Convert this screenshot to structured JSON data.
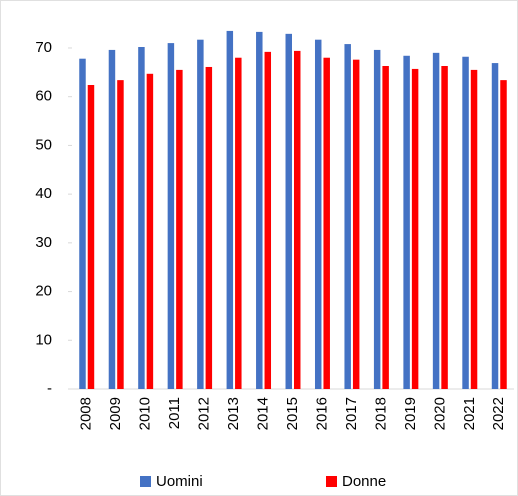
{
  "chart_data": {
    "type": "bar",
    "categories": [
      "2008",
      "2009",
      "2010",
      "2011",
      "2012",
      "2013",
      "2014",
      "2015",
      "2016",
      "2017",
      "2018",
      "2019",
      "2020",
      "2021",
      "2022"
    ],
    "series": [
      {
        "name": "Uomini",
        "color": "#4472c4",
        "values": [
          67.8,
          69.6,
          70.2,
          71.0,
          71.7,
          73.5,
          73.3,
          72.9,
          71.7,
          70.8,
          69.6,
          68.4,
          69.0,
          68.2,
          66.9
        ]
      },
      {
        "name": "Donne",
        "color": "#ff0000",
        "values": [
          62.4,
          63.4,
          64.7,
          65.5,
          66.1,
          68.0,
          69.2,
          69.4,
          68.0,
          67.6,
          66.3,
          65.7,
          66.3,
          65.5,
          63.4
        ]
      }
    ],
    "ylim": [
      0,
      78
    ],
    "yticks": [
      {
        "value": 0,
        "label": "-"
      },
      10,
      20,
      30,
      40,
      50,
      60,
      70
    ],
    "legend": "bottom"
  }
}
